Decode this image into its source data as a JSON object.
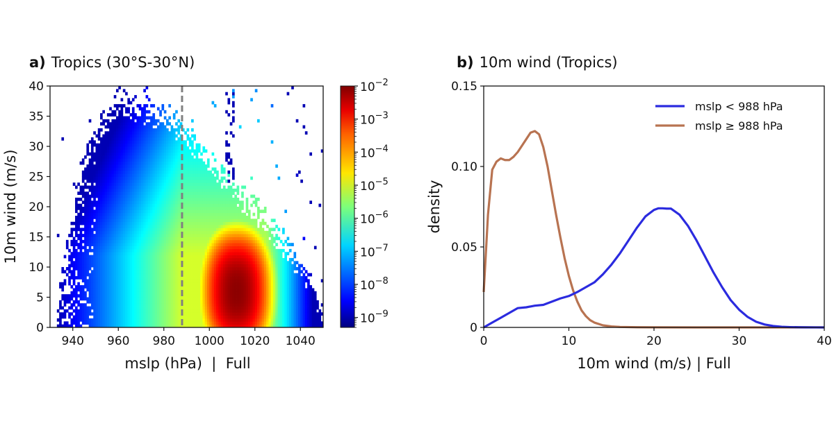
{
  "chart_data": [
    {
      "panel": "a",
      "type": "heatmap",
      "title_prefix": "a)",
      "title": "Tropics (30°S-30°N)",
      "xlabel": "mslp (hPa)  |  Full",
      "ylabel": "10m wind (m/s)",
      "xlim": [
        930,
        1050
      ],
      "ylim": [
        0,
        40
      ],
      "xticks": [
        940,
        960,
        980,
        1000,
        1020,
        1040
      ],
      "yticks": [
        0,
        5,
        10,
        15,
        20,
        25,
        30,
        35,
        40
      ],
      "colorscale": "jet",
      "color_scale_type": "log",
      "colorbar_range": [
        5e-10,
        0.01
      ],
      "colorbar_ticks": [
        {
          "value": 0.01,
          "base": "10",
          "exp": "−2"
        },
        {
          "value": 0.001,
          "base": "10",
          "exp": "−3"
        },
        {
          "value": 0.0001,
          "base": "10",
          "exp": "−4"
        },
        {
          "value": 1e-05,
          "base": "10",
          "exp": "−5"
        },
        {
          "value": 1e-06,
          "base": "10",
          "exp": "−6"
        },
        {
          "value": 1e-07,
          "base": "10",
          "exp": "−7"
        },
        {
          "value": 1e-08,
          "base": "10",
          "exp": "−8"
        },
        {
          "value": 1e-09,
          "base": "10",
          "exp": "−9"
        }
      ],
      "peak": {
        "mslp": 1012,
        "wind": 6,
        "density": 0.01
      },
      "threshold_line": {
        "mslp": 988,
        "style": "dashed",
        "color": "#808080"
      },
      "data_extent": {
        "min_mslp_approx": 933,
        "max_mslp_approx": 1050,
        "max_wind_approx": 39
      }
    },
    {
      "panel": "b",
      "type": "line",
      "title_prefix": "b)",
      "title": "10m wind (Tropics)",
      "xlabel": "10m wind (m/s) | Full",
      "ylabel": "density",
      "xlim": [
        0,
        40
      ],
      "ylim": [
        0,
        0.15
      ],
      "xticks": [
        0,
        10,
        20,
        30,
        40
      ],
      "yticks": [
        {
          "value": 0,
          "label": "0"
        },
        {
          "value": 0.05,
          "label": "0.05"
        },
        {
          "value": 0.1,
          "label": "0.10"
        },
        {
          "value": 0.15,
          "label": "0.15"
        }
      ],
      "legend_position": "top-right",
      "series": [
        {
          "name": "mslp < 988 hPa",
          "color": "#2b2bdf",
          "x": [
            0,
            1,
            2,
            3,
            4,
            5,
            6,
            7,
            8,
            9,
            10,
            11,
            12,
            13,
            14,
            15,
            16,
            17,
            18,
            19,
            20,
            20.5,
            21,
            21.5,
            22,
            23,
            24,
            25,
            26,
            27,
            28,
            29,
            30,
            31,
            32,
            33,
            34,
            35,
            36,
            37,
            38,
            39,
            40
          ],
          "y": [
            0.0,
            0.003,
            0.006,
            0.009,
            0.012,
            0.0125,
            0.0135,
            0.014,
            0.016,
            0.018,
            0.0195,
            0.022,
            0.025,
            0.028,
            0.033,
            0.039,
            0.046,
            0.054,
            0.062,
            0.069,
            0.073,
            0.074,
            0.074,
            0.0738,
            0.0738,
            0.07,
            0.063,
            0.054,
            0.044,
            0.034,
            0.025,
            0.017,
            0.011,
            0.0065,
            0.0035,
            0.0018,
            0.0009,
            0.0004,
            0.0002,
            0.0001,
            5e-05,
            2e-05,
            0.0
          ]
        },
        {
          "name": "mslp ≥ 988 hPa",
          "color": "#b87351",
          "x": [
            0,
            0.5,
            1,
            1.5,
            2,
            2.5,
            3,
            3.5,
            4,
            4.5,
            5,
            5.5,
            6,
            6.5,
            7,
            7.5,
            8,
            8.5,
            9,
            9.5,
            10,
            10.5,
            11,
            11.5,
            12,
            12.5,
            13,
            14,
            15,
            16,
            18,
            20,
            25,
            30,
            35,
            40
          ],
          "y": [
            0.022,
            0.07,
            0.098,
            0.103,
            0.105,
            0.104,
            0.104,
            0.106,
            0.109,
            0.113,
            0.117,
            0.121,
            0.122,
            0.12,
            0.112,
            0.1,
            0.085,
            0.07,
            0.056,
            0.043,
            0.032,
            0.023,
            0.016,
            0.0105,
            0.007,
            0.0045,
            0.003,
            0.0013,
            0.0006,
            0.0003,
            0.0001,
            5e-05,
            0.0,
            0.0,
            0.0,
            0.0
          ]
        }
      ]
    }
  ]
}
